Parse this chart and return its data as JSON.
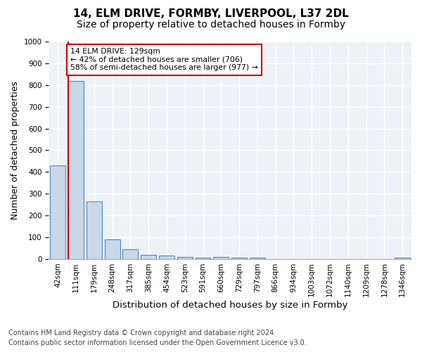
{
  "title_line1": "14, ELM DRIVE, FORMBY, LIVERPOOL, L37 2DL",
  "title_line2": "Size of property relative to detached houses in Formby",
  "xlabel": "Distribution of detached houses by size in Formby",
  "ylabel": "Number of detached properties",
  "bar_color": "#c8d8e8",
  "bar_edge_color": "#5588bb",
  "highlight_line_color": "#cc0000",
  "highlight_bin_index": 1,
  "annotation_text": "14 ELM DRIVE: 129sqm\n← 42% of detached houses are smaller (706)\n58% of semi-detached houses are larger (977) →",
  "annotation_box_color": "#ffffff",
  "annotation_box_edge": "#cc0000",
  "bins": [
    "42sqm",
    "111sqm",
    "179sqm",
    "248sqm",
    "317sqm",
    "385sqm",
    "454sqm",
    "523sqm",
    "591sqm",
    "660sqm",
    "729sqm",
    "797sqm",
    "866sqm",
    "934sqm",
    "1003sqm",
    "1072sqm",
    "1140sqm",
    "1209sqm",
    "1278sqm",
    "1346sqm"
  ],
  "values": [
    430,
    820,
    265,
    90,
    45,
    20,
    15,
    10,
    5,
    10,
    5,
    5,
    0,
    0,
    0,
    0,
    0,
    0,
    0,
    5
  ],
  "ylim": [
    0,
    1000
  ],
  "yticks": [
    0,
    100,
    200,
    300,
    400,
    500,
    600,
    700,
    800,
    900,
    1000
  ],
  "background_color": "#eef2f7",
  "footer1": "Contains HM Land Registry data © Crown copyright and database right 2024.",
  "footer2": "Contains public sector information licensed under the Open Government Licence v3.0.",
  "title_fontsize": 11,
  "subtitle_fontsize": 10,
  "axis_label_fontsize": 9,
  "tick_fontsize": 7.5,
  "footer_fontsize": 7
}
